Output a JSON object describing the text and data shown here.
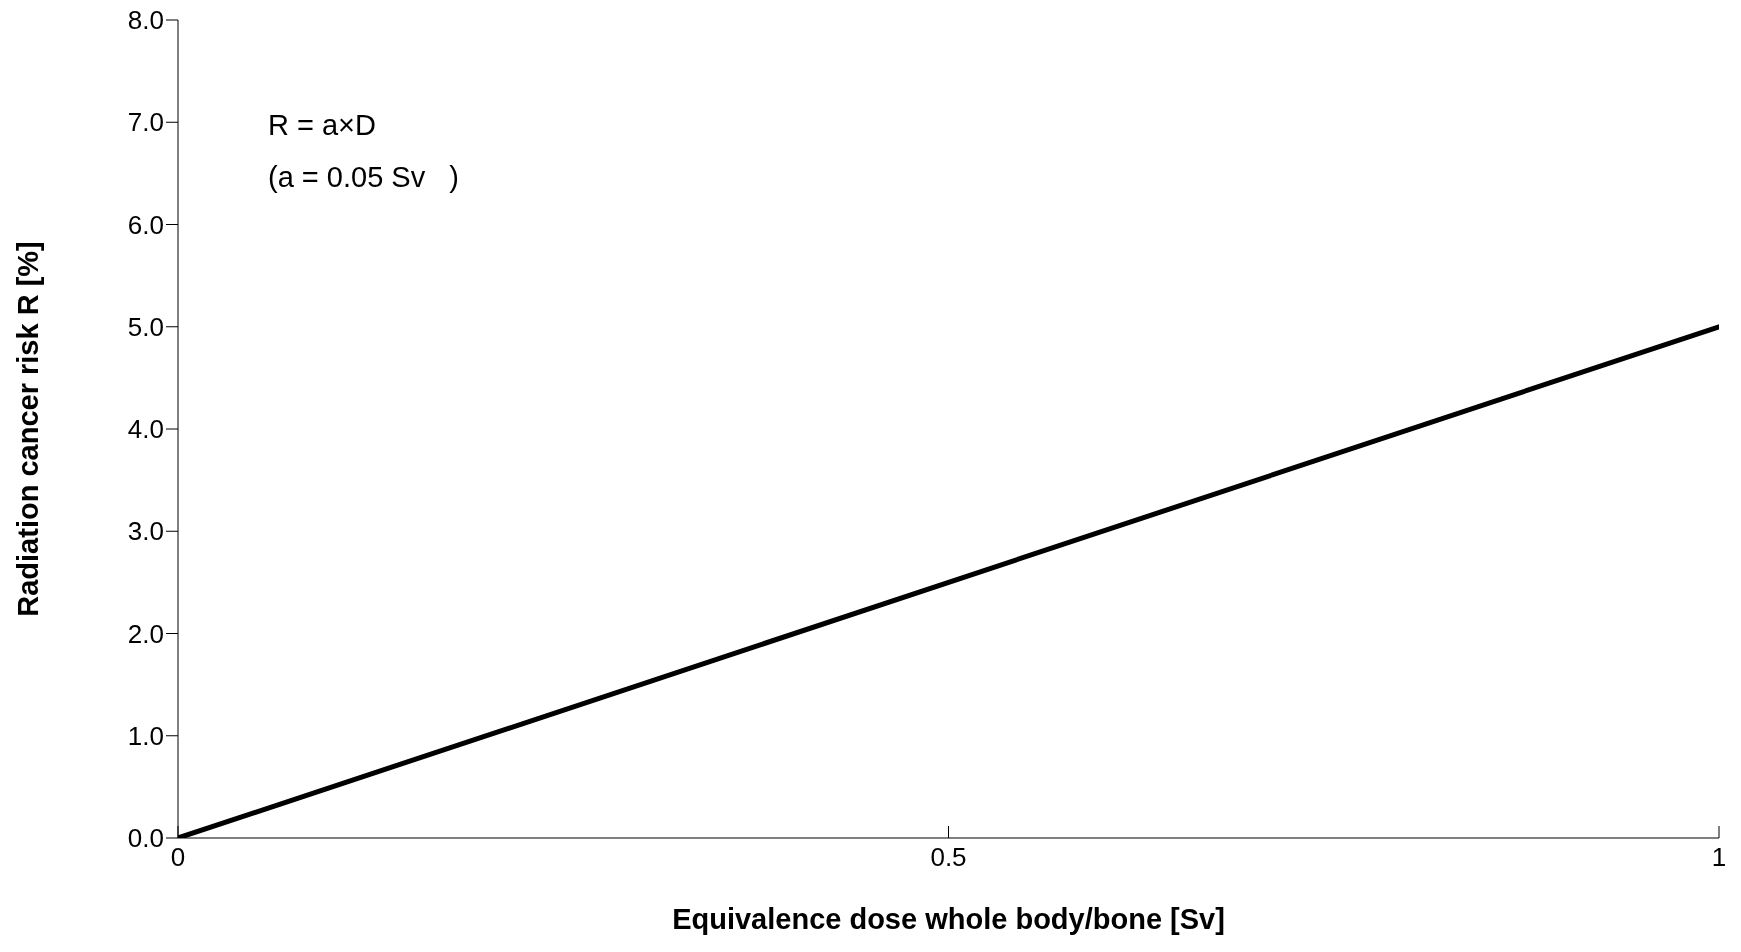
{
  "chart_data": {
    "type": "line",
    "xlabel": "Equivalence dose whole body/bone [Sv]",
    "ylabel": "Radiation cancer risk R [%]",
    "x": [
      0,
      1
    ],
    "series": [
      {
        "color": "#000000",
        "values": [
          0,
          5
        ]
      }
    ],
    "xlim": [
      0,
      1
    ],
    "xticks": [
      0,
      0.5,
      1
    ],
    "ylim": [
      0,
      8
    ],
    "yticks": [
      {
        "value": 0,
        "label": "0.0"
      },
      {
        "value": 1,
        "label": "1.0"
      },
      {
        "value": 2,
        "label": "2.0"
      },
      {
        "value": 3,
        "label": "3.0"
      },
      {
        "value": 4,
        "label": "4.0"
      },
      {
        "value": 5,
        "label": "5.0"
      },
      {
        "value": 6,
        "label": "6.0"
      },
      {
        "value": 7,
        "label": "7.0"
      },
      {
        "value": 8,
        "label": "8.0"
      }
    ],
    "annotations": [
      "R = a×D",
      "(a = 0.05 Sv   )"
    ],
    "grid": false,
    "legend": false,
    "marker": "none",
    "line_style": "solid"
  }
}
